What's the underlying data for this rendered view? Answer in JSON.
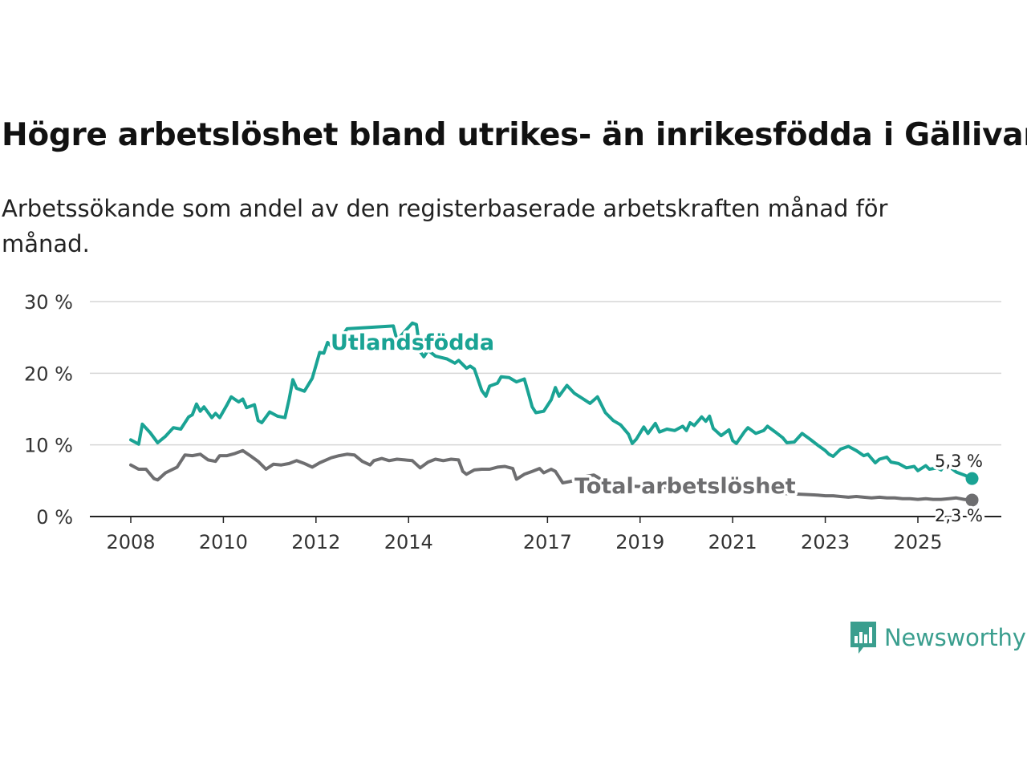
{
  "title": "Högre arbetslöshet bland utrikes- än inrikesfödda i Gällivare",
  "subtitle": "Arbetssökande som andel av den registerbaserade arbetskraften månad för månad.",
  "brand": {
    "name": "Newsworthy",
    "logo_icon": "bar-chart-speech-bubble-icon",
    "color": "#3a9e8e"
  },
  "chart_data": {
    "type": "line",
    "title": "Högre arbetslöshet bland utrikes- än inrikesfödda i Gällivare",
    "xlabel": "",
    "ylabel": "",
    "ylim": [
      0,
      30
    ],
    "yticks": [
      0,
      10,
      20,
      30
    ],
    "ytick_labels": [
      "0 %",
      "10 %",
      "20 %",
      "30 %"
    ],
    "xlim": [
      2007.8,
      2026.2
    ],
    "xticks": [
      2008,
      2010,
      2012,
      2014,
      2017,
      2019,
      2021,
      2023,
      2025
    ],
    "xtick_labels": [
      "2008",
      "2010",
      "2012",
      "2014",
      "2017",
      "2019",
      "2021",
      "2023",
      "2025"
    ],
    "grid": true,
    "series": [
      {
        "name": "Utlandsfödda",
        "color": "#1aa394",
        "end_label": "5,3 %",
        "points": [
          [
            2008.0,
            10.7
          ],
          [
            2008.17,
            10.1
          ],
          [
            2008.25,
            12.9
          ],
          [
            2008.42,
            11.7
          ],
          [
            2008.58,
            10.3
          ],
          [
            2008.75,
            11.2
          ],
          [
            2008.92,
            12.4
          ],
          [
            2009.08,
            12.2
          ],
          [
            2009.25,
            13.9
          ],
          [
            2009.33,
            14.2
          ],
          [
            2009.42,
            15.7
          ],
          [
            2009.5,
            14.7
          ],
          [
            2009.58,
            15.3
          ],
          [
            2009.75,
            13.8
          ],
          [
            2009.83,
            14.4
          ],
          [
            2009.92,
            13.8
          ],
          [
            2010.08,
            15.6
          ],
          [
            2010.17,
            16.7
          ],
          [
            2010.33,
            16.0
          ],
          [
            2010.42,
            16.4
          ],
          [
            2010.5,
            15.2
          ],
          [
            2010.67,
            15.6
          ],
          [
            2010.75,
            13.4
          ],
          [
            2010.83,
            13.1
          ],
          [
            2011.0,
            14.6
          ],
          [
            2011.17,
            14.0
          ],
          [
            2011.33,
            13.8
          ],
          [
            2011.42,
            16.4
          ],
          [
            2011.5,
            19.1
          ],
          [
            2011.58,
            17.9
          ],
          [
            2011.75,
            17.5
          ],
          [
            2011.92,
            19.3
          ],
          [
            2012.08,
            22.9
          ],
          [
            2012.17,
            22.8
          ],
          [
            2012.25,
            24.3
          ],
          [
            2012.42,
            23.2
          ],
          [
            2012.5,
            24.5
          ],
          [
            2012.67,
            26.2
          ],
          [
            2013.67,
            26.6
          ],
          [
            2013.75,
            24.6
          ],
          [
            2014.08,
            27.0
          ],
          [
            2014.17,
            26.8
          ],
          [
            2014.25,
            23.0
          ],
          [
            2014.33,
            22.3
          ],
          [
            2014.42,
            23.2
          ],
          [
            2014.58,
            22.4
          ],
          [
            2014.83,
            22.0
          ],
          [
            2015.0,
            21.4
          ],
          [
            2015.08,
            21.8
          ],
          [
            2015.25,
            20.7
          ],
          [
            2015.33,
            21.0
          ],
          [
            2015.42,
            20.6
          ],
          [
            2015.58,
            17.6
          ],
          [
            2015.67,
            16.8
          ],
          [
            2015.75,
            18.2
          ],
          [
            2015.92,
            18.6
          ],
          [
            2016.0,
            19.5
          ],
          [
            2016.17,
            19.4
          ],
          [
            2016.33,
            18.8
          ],
          [
            2016.5,
            19.2
          ],
          [
            2016.58,
            17.4
          ],
          [
            2016.67,
            15.3
          ],
          [
            2016.75,
            14.5
          ],
          [
            2016.92,
            14.7
          ],
          [
            2017.08,
            16.3
          ],
          [
            2017.17,
            18.0
          ],
          [
            2017.25,
            16.8
          ],
          [
            2017.42,
            18.3
          ],
          [
            2017.58,
            17.2
          ],
          [
            2017.75,
            16.5
          ],
          [
            2017.92,
            15.8
          ],
          [
            2018.08,
            16.7
          ],
          [
            2018.25,
            14.5
          ],
          [
            2018.42,
            13.4
          ],
          [
            2018.58,
            12.8
          ],
          [
            2018.75,
            11.5
          ],
          [
            2018.83,
            10.2
          ],
          [
            2018.92,
            10.8
          ],
          [
            2019.08,
            12.5
          ],
          [
            2019.17,
            11.6
          ],
          [
            2019.33,
            13.0
          ],
          [
            2019.42,
            11.8
          ],
          [
            2019.58,
            12.2
          ],
          [
            2019.75,
            12.0
          ],
          [
            2019.92,
            12.6
          ],
          [
            2020.0,
            12.0
          ],
          [
            2020.08,
            13.1
          ],
          [
            2020.17,
            12.7
          ],
          [
            2020.33,
            13.9
          ],
          [
            2020.42,
            13.3
          ],
          [
            2020.5,
            14.0
          ],
          [
            2020.58,
            12.3
          ],
          [
            2020.75,
            11.3
          ],
          [
            2020.92,
            12.1
          ],
          [
            2021.0,
            10.6
          ],
          [
            2021.08,
            10.2
          ],
          [
            2021.25,
            11.8
          ],
          [
            2021.33,
            12.4
          ],
          [
            2021.5,
            11.6
          ],
          [
            2021.67,
            12.0
          ],
          [
            2021.75,
            12.6
          ],
          [
            2021.92,
            11.8
          ],
          [
            2022.08,
            11.0
          ],
          [
            2022.17,
            10.3
          ],
          [
            2022.33,
            10.4
          ],
          [
            2022.5,
            11.6
          ],
          [
            2022.67,
            10.8
          ],
          [
            2022.83,
            10.0
          ],
          [
            2023.0,
            9.2
          ],
          [
            2023.08,
            8.7
          ],
          [
            2023.17,
            8.4
          ],
          [
            2023.33,
            9.4
          ],
          [
            2023.5,
            9.8
          ],
          [
            2023.67,
            9.2
          ],
          [
            2023.83,
            8.5
          ],
          [
            2023.92,
            8.7
          ],
          [
            2024.08,
            7.5
          ],
          [
            2024.17,
            8.0
          ],
          [
            2024.33,
            8.3
          ],
          [
            2024.42,
            7.6
          ],
          [
            2024.58,
            7.4
          ],
          [
            2024.75,
            6.8
          ],
          [
            2024.92,
            7.0
          ],
          [
            2025.0,
            6.4
          ],
          [
            2025.17,
            7.1
          ],
          [
            2025.25,
            6.6
          ],
          [
            2025.42,
            6.8
          ],
          [
            2025.5,
            6.5
          ],
          [
            2025.58,
            7.4
          ],
          [
            2025.67,
            7.0
          ],
          [
            2025.75,
            6.6
          ],
          [
            2025.83,
            6.2
          ],
          [
            2026.0,
            5.8
          ],
          [
            2026.17,
            5.3
          ]
        ]
      },
      {
        "name": "Total arbetslöshet",
        "color": "#6e6e70",
        "end_label": "2,3 %",
        "points": [
          [
            2008.0,
            7.2
          ],
          [
            2008.17,
            6.6
          ],
          [
            2008.33,
            6.6
          ],
          [
            2008.5,
            5.3
          ],
          [
            2008.58,
            5.1
          ],
          [
            2008.75,
            6.1
          ],
          [
            2009.0,
            6.9
          ],
          [
            2009.17,
            8.6
          ],
          [
            2009.33,
            8.5
          ],
          [
            2009.5,
            8.7
          ],
          [
            2009.67,
            7.9
          ],
          [
            2009.83,
            7.7
          ],
          [
            2009.92,
            8.5
          ],
          [
            2010.08,
            8.5
          ],
          [
            2010.25,
            8.8
          ],
          [
            2010.42,
            9.2
          ],
          [
            2010.58,
            8.5
          ],
          [
            2010.75,
            7.7
          ],
          [
            2010.92,
            6.6
          ],
          [
            2011.08,
            7.3
          ],
          [
            2011.25,
            7.2
          ],
          [
            2011.42,
            7.4
          ],
          [
            2011.58,
            7.8
          ],
          [
            2011.75,
            7.4
          ],
          [
            2011.92,
            6.9
          ],
          [
            2012.08,
            7.5
          ],
          [
            2012.33,
            8.2
          ],
          [
            2012.5,
            8.5
          ],
          [
            2012.67,
            8.7
          ],
          [
            2012.83,
            8.6
          ],
          [
            2013.0,
            7.7
          ],
          [
            2013.17,
            7.2
          ],
          [
            2013.25,
            7.8
          ],
          [
            2013.42,
            8.1
          ],
          [
            2013.58,
            7.8
          ],
          [
            2013.75,
            8.0
          ],
          [
            2013.92,
            7.9
          ],
          [
            2014.08,
            7.8
          ],
          [
            2014.25,
            6.8
          ],
          [
            2014.42,
            7.6
          ],
          [
            2014.58,
            8.0
          ],
          [
            2014.75,
            7.8
          ],
          [
            2014.92,
            8.0
          ],
          [
            2015.08,
            7.9
          ],
          [
            2015.17,
            6.3
          ],
          [
            2015.25,
            5.9
          ],
          [
            2015.42,
            6.5
          ],
          [
            2015.58,
            6.6
          ],
          [
            2015.75,
            6.6
          ],
          [
            2015.92,
            6.9
          ],
          [
            2016.08,
            7.0
          ],
          [
            2016.25,
            6.7
          ],
          [
            2016.33,
            5.2
          ],
          [
            2016.5,
            5.9
          ],
          [
            2016.67,
            6.3
          ],
          [
            2016.83,
            6.7
          ],
          [
            2016.92,
            6.1
          ],
          [
            2017.08,
            6.6
          ],
          [
            2017.17,
            6.3
          ],
          [
            2017.33,
            4.7
          ],
          [
            2017.5,
            4.9
          ],
          [
            2017.67,
            5.3
          ],
          [
            2017.83,
            5.6
          ],
          [
            2018.0,
            5.8
          ],
          [
            2018.08,
            5.5
          ],
          [
            2018.33,
            4.4
          ],
          [
            2022.83,
            3.0
          ],
          [
            2023.0,
            2.9
          ],
          [
            2023.17,
            2.9
          ],
          [
            2023.33,
            2.8
          ],
          [
            2023.5,
            2.7
          ],
          [
            2023.67,
            2.8
          ],
          [
            2023.83,
            2.7
          ],
          [
            2024.0,
            2.6
          ],
          [
            2024.17,
            2.7
          ],
          [
            2024.33,
            2.6
          ],
          [
            2024.5,
            2.6
          ],
          [
            2024.67,
            2.5
          ],
          [
            2024.83,
            2.5
          ],
          [
            2025.0,
            2.4
          ],
          [
            2025.17,
            2.5
          ],
          [
            2025.33,
            2.4
          ],
          [
            2025.5,
            2.4
          ],
          [
            2025.67,
            2.5
          ],
          [
            2025.83,
            2.6
          ],
          [
            2026.0,
            2.4
          ],
          [
            2026.17,
            2.3
          ]
        ]
      }
    ]
  }
}
